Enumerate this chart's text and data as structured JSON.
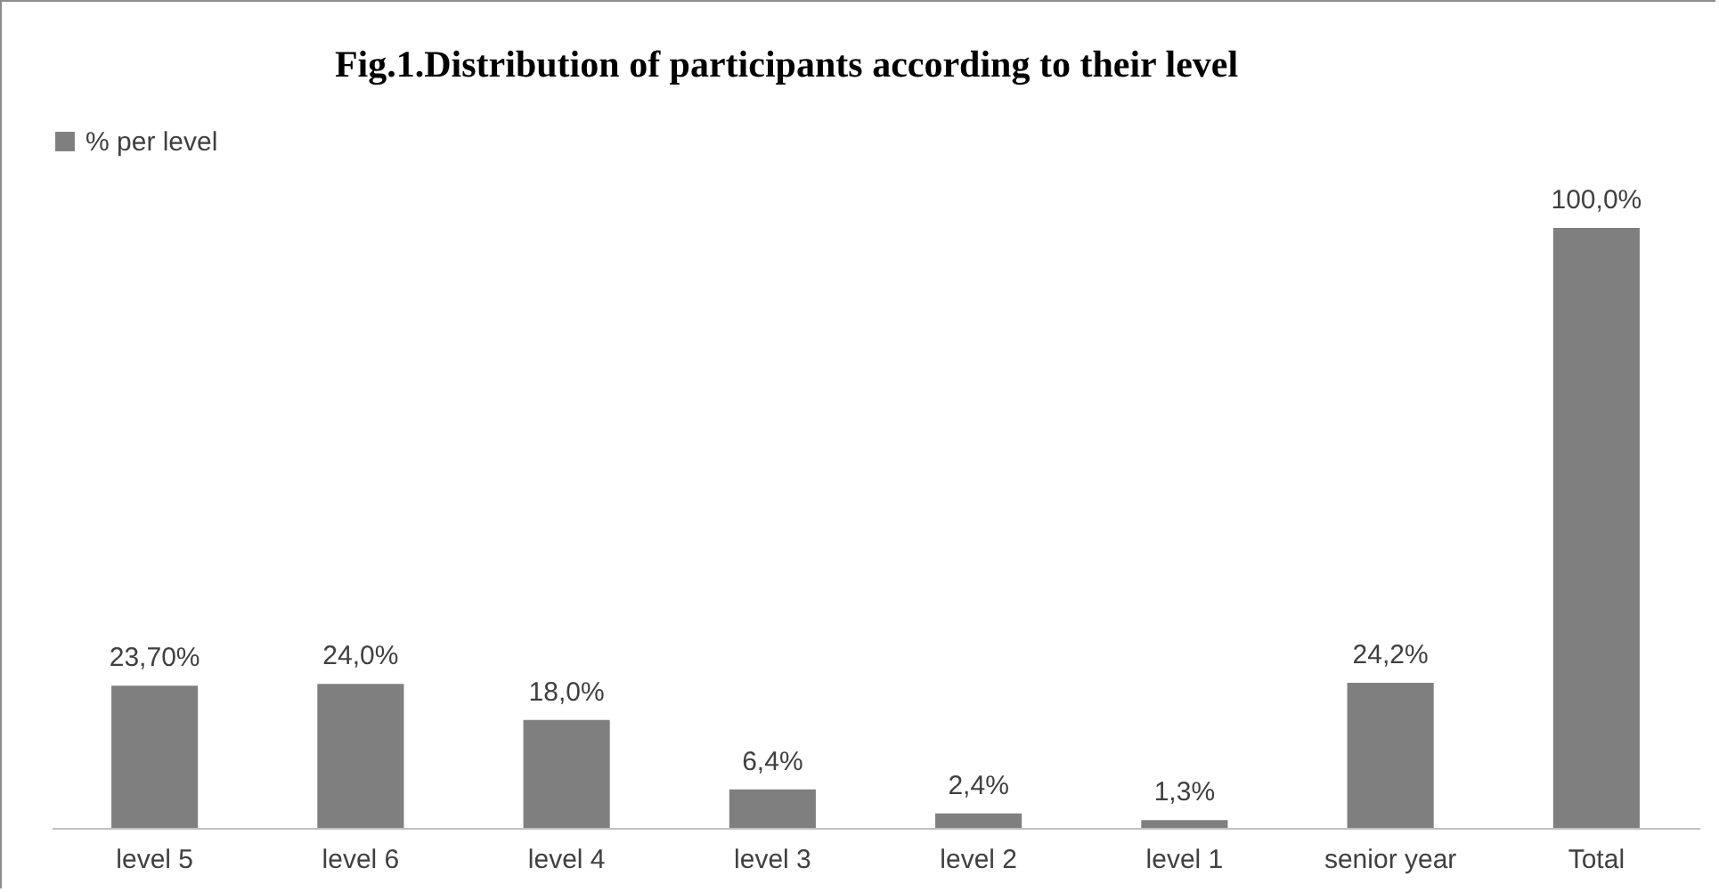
{
  "chart_data": {
    "type": "bar",
    "title": "Fig.1.Distribution of participants according to their level",
    "categories": [
      "level 5",
      "level 6",
      "level 4",
      "level 3",
      "level 2",
      "level 1",
      "senior year",
      "Total"
    ],
    "series": [
      {
        "name": "% per level",
        "color": "#7f7f7f",
        "values": [
          23.7,
          24.0,
          18.0,
          6.4,
          2.4,
          1.3,
          24.2,
          100.0
        ],
        "value_labels": [
          "23,70%",
          "24,0%",
          "18,0%",
          "6,4%",
          "2,4%",
          "1,3%",
          "24,2%",
          "100,0%"
        ]
      }
    ],
    "legend": "top",
    "tick_labels": "x"
  }
}
